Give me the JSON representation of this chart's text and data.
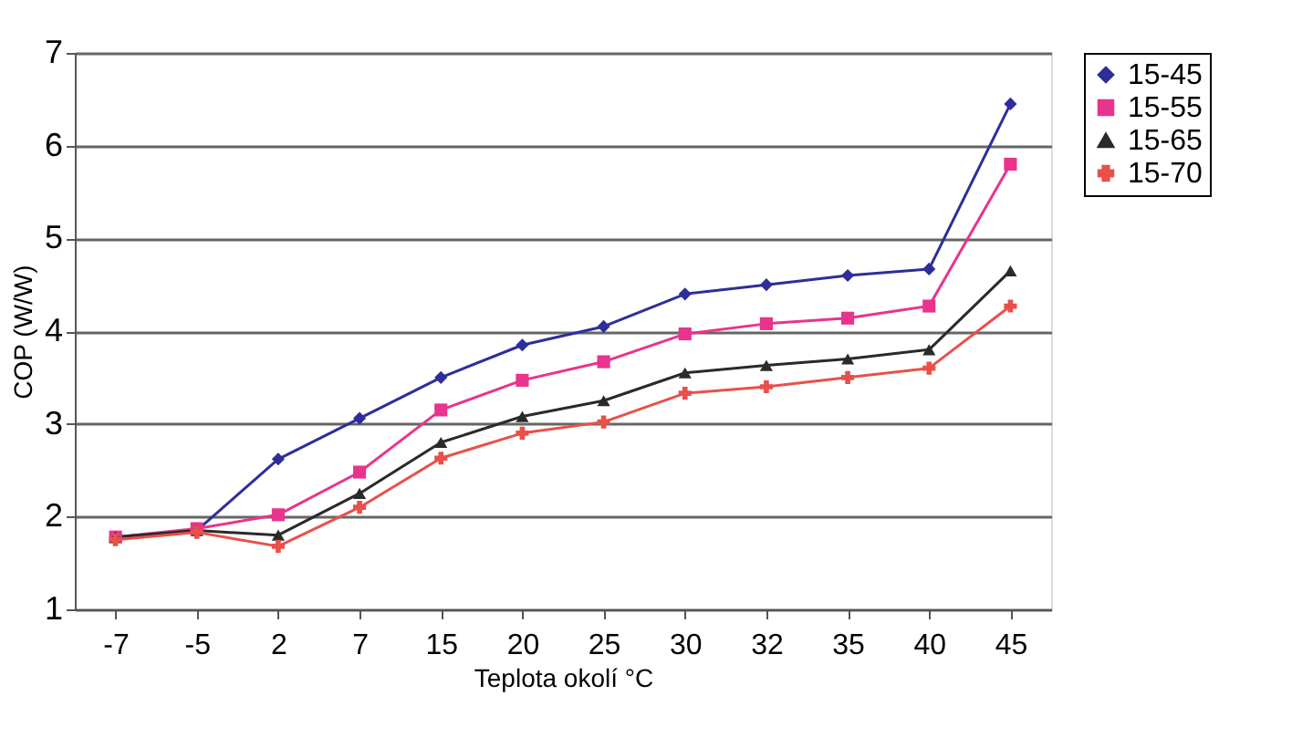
{
  "chart_data": {
    "type": "line",
    "xlabel": "Teplota okolí °C",
    "ylabel": "COP (W/W)",
    "categories": [
      "-7",
      "-5",
      "2",
      "7",
      "15",
      "20",
      "25",
      "30",
      "32",
      "35",
      "40",
      "45"
    ],
    "ylim": [
      1,
      7
    ],
    "yticks": [
      1,
      2,
      3,
      4,
      5,
      6,
      7
    ],
    "grid": "y",
    "legend": "right",
    "line_style": "solid",
    "series": [
      {
        "name": "15-45",
        "color": "#2e2e9a",
        "marker": "diamond",
        "values": [
          1.78,
          1.85,
          2.62,
          3.06,
          3.5,
          3.85,
          4.05,
          4.4,
          4.5,
          4.6,
          4.67,
          6.45
        ]
      },
      {
        "name": "15-55",
        "color": "#e8348c",
        "marker": "square",
        "values": [
          1.78,
          1.87,
          2.02,
          2.48,
          3.15,
          3.47,
          3.67,
          3.97,
          4.08,
          4.14,
          4.27,
          5.8
        ]
      },
      {
        "name": "15-65",
        "color": "#2a2a2a",
        "marker": "triangle",
        "values": [
          1.78,
          1.85,
          1.8,
          2.25,
          2.8,
          3.08,
          3.25,
          3.55,
          3.63,
          3.7,
          3.8,
          4.65
        ]
      },
      {
        "name": "15-70",
        "color": "#e8504a",
        "marker": "cross",
        "values": [
          1.75,
          1.83,
          1.68,
          2.1,
          2.63,
          2.9,
          3.02,
          3.33,
          3.4,
          3.5,
          3.6,
          4.27
        ]
      }
    ]
  }
}
